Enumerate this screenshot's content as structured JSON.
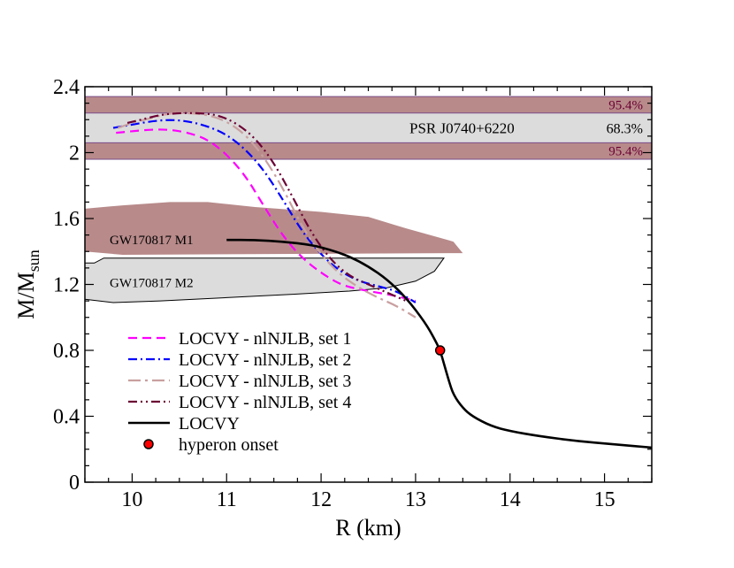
{
  "chart_data": {
    "type": "line",
    "xlabel": "R (km)",
    "ylabel_main": "M/M",
    "ylabel_sub": "sun",
    "xlim": [
      9.5,
      15.5
    ],
    "ylim": [
      0,
      2.4
    ],
    "x_ticks": [
      "10",
      "11",
      "12",
      "13",
      "14",
      "15"
    ],
    "x_tick_values": [
      10,
      11,
      12,
      13,
      14,
      15
    ],
    "y_ticks": [
      "0",
      "0.4",
      "0.8",
      "1.2",
      "1.6",
      "2",
      "2.4"
    ],
    "y_tick_values": [
      0,
      0.4,
      0.8,
      1.2,
      1.6,
      2.0,
      2.4
    ],
    "grid": false,
    "legend_position": "bottom-left",
    "bands": [
      {
        "label": "95.4%",
        "y": [
          2.24,
          2.34
        ],
        "color": "#b88a8a"
      },
      {
        "label": "68.3%",
        "y": [
          2.06,
          2.24
        ],
        "color": "#dcdcdc"
      },
      {
        "label": "95.4%",
        "y": [
          1.96,
          2.06
        ],
        "color": "#b88a8a"
      }
    ],
    "band_title": "PSR J0740+6220",
    "regions": [
      {
        "label": "GW170817 M1",
        "color": "#b88a8a",
        "points": [
          [
            9.5,
            1.66
          ],
          [
            9.9,
            1.68
          ],
          [
            10.4,
            1.7
          ],
          [
            10.8,
            1.7
          ],
          [
            11.3,
            1.67
          ],
          [
            12.0,
            1.64
          ],
          [
            12.5,
            1.61
          ],
          [
            12.9,
            1.54
          ],
          [
            13.4,
            1.46
          ],
          [
            13.5,
            1.39
          ],
          [
            9.9,
            1.38
          ],
          [
            9.5,
            1.4
          ]
        ]
      },
      {
        "label": "GW170817 M2",
        "color": "#dcdcdc",
        "points": [
          [
            9.5,
            1.11
          ],
          [
            9.8,
            1.09
          ],
          [
            10.3,
            1.1
          ],
          [
            11.0,
            1.12
          ],
          [
            11.7,
            1.14
          ],
          [
            12.3,
            1.16
          ],
          [
            12.7,
            1.18
          ],
          [
            13.0,
            1.22
          ],
          [
            13.2,
            1.28
          ],
          [
            13.3,
            1.36
          ],
          [
            9.7,
            1.36
          ],
          [
            9.6,
            1.33
          ],
          [
            9.5,
            1.33
          ]
        ]
      }
    ],
    "series": [
      {
        "name": "LOCVY - nlNJLB, set 1",
        "color": "#ff00ff",
        "dash": "10,6",
        "x": [
          9.83,
          10.0,
          10.2,
          10.4,
          10.6,
          10.8,
          11.0,
          11.2,
          11.4,
          11.6,
          11.8,
          12.0,
          12.2,
          12.4,
          12.6,
          12.8,
          13.0
        ],
        "y": [
          2.12,
          2.13,
          2.14,
          2.14,
          2.12,
          2.08,
          1.99,
          1.86,
          1.67,
          1.49,
          1.36,
          1.27,
          1.2,
          1.17,
          1.15,
          1.13,
          1.1
        ]
      },
      {
        "name": "LOCVY - nlNJLB, set 2",
        "color": "#0000ff",
        "dash": "10,4,2,4",
        "x": [
          9.8,
          10.0,
          10.2,
          10.4,
          10.6,
          10.8,
          11.0,
          11.2,
          11.4,
          11.6,
          11.8,
          12.0,
          12.2,
          12.4,
          12.6,
          12.8,
          13.0
        ],
        "y": [
          2.15,
          2.17,
          2.19,
          2.2,
          2.19,
          2.16,
          2.11,
          2.02,
          1.89,
          1.71,
          1.52,
          1.38,
          1.28,
          1.22,
          1.19,
          1.16,
          1.09
        ]
      },
      {
        "name": "LOCVY - nlNJLB, set 3",
        "color": "#c9a0a0",
        "dash": "14,5,3,5",
        "x": [
          9.85,
          10.0,
          10.2,
          10.4,
          10.6,
          10.8,
          11.0,
          11.2,
          11.4,
          11.6,
          11.8,
          12.0,
          12.2,
          12.4,
          12.6,
          12.8,
          13.0
        ],
        "y": [
          2.15,
          2.18,
          2.21,
          2.24,
          2.24,
          2.23,
          2.19,
          2.11,
          1.97,
          1.78,
          1.55,
          1.38,
          1.26,
          1.18,
          1.12,
          1.07,
          1.0
        ]
      },
      {
        "name": "LOCVY - nlNJLB, set 4",
        "color": "#6b0033",
        "dash": "10,4,2,4,2,4",
        "x": [
          9.95,
          10.1,
          10.3,
          10.5,
          10.7,
          10.9,
          11.1,
          11.3,
          11.5,
          11.7,
          11.9,
          12.1,
          12.3,
          12.5,
          12.7,
          12.9
        ],
        "y": [
          2.18,
          2.2,
          2.23,
          2.24,
          2.24,
          2.23,
          2.18,
          2.09,
          1.94,
          1.73,
          1.51,
          1.35,
          1.25,
          1.2,
          1.15,
          1.1
        ]
      },
      {
        "name": "LOCVY",
        "color": "#000000",
        "dash": "",
        "x": [
          11.0,
          11.3,
          11.6,
          11.9,
          12.1,
          12.3,
          12.5,
          12.7,
          12.9,
          13.1,
          13.2,
          13.26,
          13.3,
          13.35,
          13.4,
          13.5,
          13.6,
          13.8,
          14.0,
          14.3,
          14.7,
          15.1,
          15.5
        ],
        "y": [
          1.47,
          1.47,
          1.46,
          1.44,
          1.41,
          1.37,
          1.31,
          1.23,
          1.12,
          0.97,
          0.87,
          0.8,
          0.72,
          0.62,
          0.53,
          0.45,
          0.4,
          0.34,
          0.31,
          0.28,
          0.25,
          0.23,
          0.21
        ]
      }
    ],
    "markers": [
      {
        "name": "hyperon onset",
        "x": 13.26,
        "y": 0.8,
        "fill": "#ff0000",
        "stroke": "#000000"
      }
    ]
  }
}
